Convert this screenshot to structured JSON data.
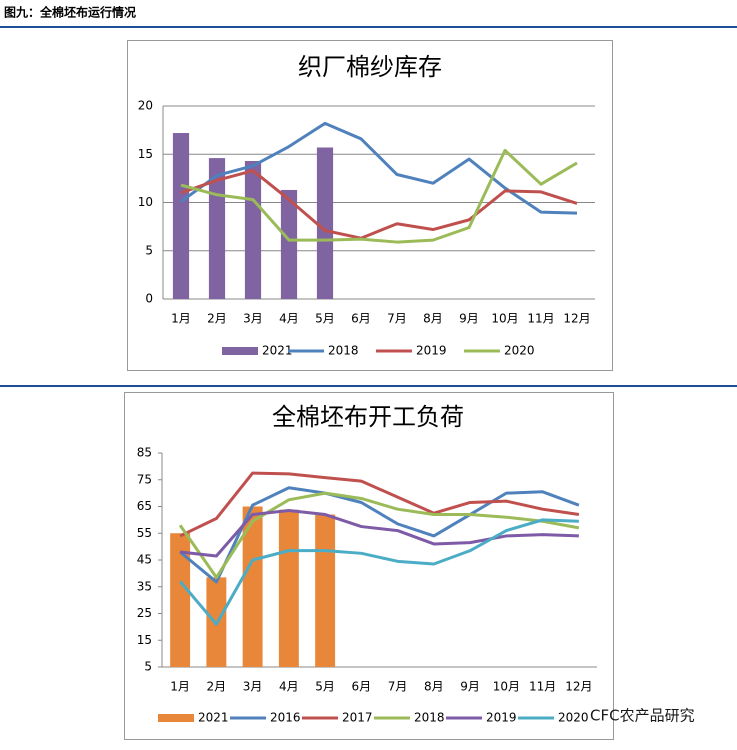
{
  "header": {
    "title": "图九：全棉坯布运行情况"
  },
  "watermark": "CFC农产品研究",
  "chart_data": [
    {
      "type": "combo",
      "title": "织厂棉纱库存",
      "categories": [
        "1月",
        "2月",
        "3月",
        "4月",
        "5月",
        "6月",
        "7月",
        "8月",
        "9月",
        "10月",
        "11月",
        "12月"
      ],
      "ylim": [
        0,
        20
      ],
      "yticks": [
        0,
        5,
        10,
        15,
        20
      ],
      "grid": true,
      "series": [
        {
          "name": "2021",
          "kind": "bar",
          "color": "#8064a2",
          "values": [
            17.2,
            14.6,
            14.3,
            11.3,
            15.7,
            null,
            null,
            null,
            null,
            null,
            null,
            null
          ]
        },
        {
          "name": "2018",
          "kind": "line",
          "color": "#4f81bd",
          "values": [
            10.1,
            12.8,
            13.8,
            15.8,
            18.2,
            16.6,
            12.9,
            12,
            14.5,
            11.5,
            9,
            8.9
          ]
        },
        {
          "name": "2019",
          "kind": "line",
          "color": "#c0504d",
          "values": [
            11,
            12.3,
            13.3,
            10.3,
            7.1,
            6.3,
            7.8,
            7.2,
            8.2,
            11.2,
            11.1,
            9.9
          ]
        },
        {
          "name": "2020",
          "kind": "line",
          "color": "#9bbb59",
          "values": [
            11.8,
            10.8,
            10.3,
            6.1,
            6.1,
            6.2,
            5.9,
            6.1,
            7.4,
            15.4,
            11.9,
            14.1
          ]
        }
      ]
    },
    {
      "type": "combo",
      "title": "全棉坯布开工负荷",
      "categories": [
        "1月",
        "2月",
        "3月",
        "4月",
        "5月",
        "6月",
        "7月",
        "8月",
        "9月",
        "10月",
        "11月",
        "12月"
      ],
      "ylim": [
        5,
        85
      ],
      "yticks": [
        5,
        15,
        25,
        35,
        45,
        55,
        65,
        75,
        85
      ],
      "grid": false,
      "series": [
        {
          "name": "2021",
          "kind": "bar",
          "color": "#e8873a",
          "values": [
            55,
            38.5,
            65,
            63.8,
            62,
            null,
            null,
            null,
            null,
            null,
            null,
            null
          ]
        },
        {
          "name": "2016",
          "kind": "line",
          "color": "#4f81bd",
          "values": [
            48,
            36.8,
            65.5,
            72,
            70,
            66.5,
            58.5,
            54,
            62,
            70,
            70.5,
            65.5
          ]
        },
        {
          "name": "2017",
          "kind": "line",
          "color": "#c0504d",
          "values": [
            54,
            60.5,
            77.5,
            77.2,
            75.8,
            74.5,
            68.5,
            62.5,
            66.5,
            67,
            64,
            62
          ]
        },
        {
          "name": "2018",
          "kind": "line",
          "color": "#9bbb59",
          "values": [
            58,
            38.5,
            59.5,
            67.5,
            70,
            68,
            64,
            62,
            62,
            61,
            59.5,
            57
          ]
        },
        {
          "name": "2019",
          "kind": "line",
          "color": "#7d5ba6",
          "values": [
            48,
            46.5,
            62,
            63.5,
            62,
            57.5,
            56,
            51,
            51.5,
            54,
            54.5,
            54
          ]
        },
        {
          "name": "2020",
          "kind": "line",
          "color": "#4bacc6",
          "values": [
            37,
            21,
            45,
            48.5,
            48.5,
            47.5,
            44.5,
            43.5,
            48.5,
            56,
            60,
            59.5
          ]
        }
      ]
    }
  ]
}
